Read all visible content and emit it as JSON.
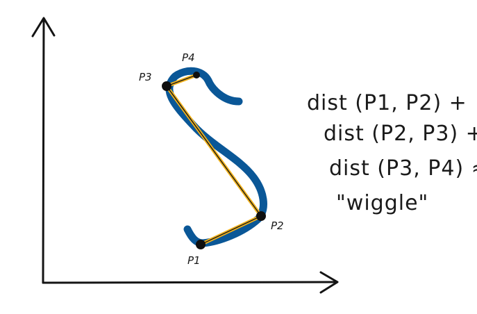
{
  "colors": {
    "axis": "#141414",
    "curve": "#0a5797",
    "chord": "#f2b21a",
    "chord_inner": "#1a1a1a",
    "point": "#0f0f0f",
    "ink": "#1a1a1a"
  },
  "points": [
    {
      "id": "p1",
      "label": "P1"
    },
    {
      "id": "p2",
      "label": "P2"
    },
    {
      "id": "p3",
      "label": "P3"
    },
    {
      "id": "p4",
      "label": "P4"
    }
  ],
  "formula": {
    "line1": "dist (P1, P2) +",
    "line2": "dist (P2, P3) +",
    "line3": "dist (P3, P4) ≈",
    "line4": "\"wiggle\""
  }
}
